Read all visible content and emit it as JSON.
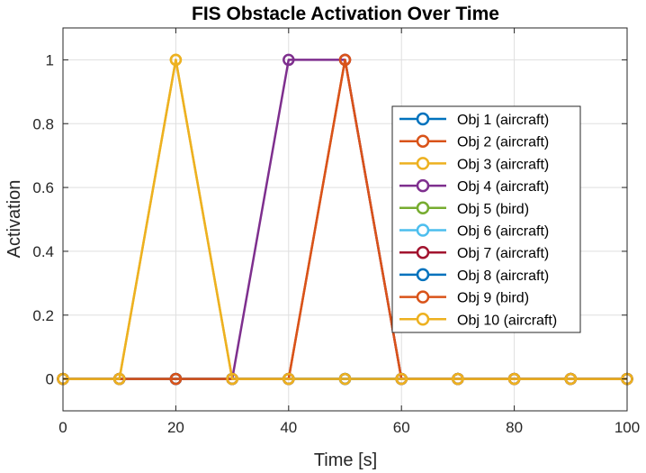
{
  "chart_data": {
    "type": "line",
    "title": "FIS Obstacle Activation Over Time",
    "xlabel": "Time [s]",
    "ylabel": "Activation",
    "xlim": [
      0,
      100
    ],
    "ylim": [
      -0.1,
      1.1
    ],
    "xticks": [
      0,
      20,
      40,
      60,
      80,
      100
    ],
    "yticks": [
      0,
      0.2,
      0.4,
      0.6,
      0.8,
      1
    ],
    "xtick_labels": [
      "0",
      "20",
      "40",
      "60",
      "80",
      "100"
    ],
    "ytick_labels": [
      "0",
      "0.2",
      "0.4",
      "0.6",
      "0.8",
      "1"
    ],
    "grid": true,
    "legend_position": "right",
    "x": [
      0,
      10,
      20,
      30,
      40,
      50,
      60,
      70,
      80,
      90,
      100
    ],
    "series": [
      {
        "name": "Obj 1 (aircraft)",
        "color": "#0072BD",
        "values": [
          0,
          0,
          0,
          0,
          0,
          0,
          0,
          0,
          0,
          0,
          0
        ]
      },
      {
        "name": "Obj 2 (aircraft)",
        "color": "#D95319",
        "values": [
          0,
          0,
          0,
          0,
          0,
          1,
          0,
          0,
          0,
          0,
          0
        ]
      },
      {
        "name": "Obj 3 (aircraft)",
        "color": "#EDB120",
        "values": [
          0,
          0,
          1,
          0,
          0,
          0,
          0,
          0,
          0,
          0,
          0
        ]
      },
      {
        "name": "Obj 4 (aircraft)",
        "color": "#7E2F8E",
        "values": [
          0,
          0,
          0,
          0,
          1,
          1,
          0,
          0,
          0,
          0,
          0
        ]
      },
      {
        "name": "Obj 5 (bird)",
        "color": "#77AC30",
        "values": [
          0,
          0,
          0,
          0,
          0,
          0,
          0,
          0,
          0,
          0,
          0
        ]
      },
      {
        "name": "Obj 6 (aircraft)",
        "color": "#4DBEEE",
        "values": [
          0,
          0,
          0,
          0,
          0,
          0,
          0,
          0,
          0,
          0,
          0
        ]
      },
      {
        "name": "Obj 7 (aircraft)",
        "color": "#A2142F",
        "values": [
          0,
          0,
          0,
          0,
          0,
          0,
          0,
          0,
          0,
          0,
          0
        ]
      },
      {
        "name": "Obj 8 (aircraft)",
        "color": "#0072BD",
        "values": [
          0,
          0,
          0,
          0,
          0,
          0,
          0,
          0,
          0,
          0,
          0
        ]
      },
      {
        "name": "Obj 9 (bird)",
        "color": "#D95319",
        "values": [
          0,
          0,
          0,
          0,
          0,
          1,
          0,
          0,
          0,
          0,
          0
        ]
      },
      {
        "name": "Obj 10 (aircraft)",
        "color": "#EDB120",
        "values": [
          0,
          0,
          1,
          0,
          0,
          0,
          0,
          0,
          0,
          0,
          0
        ]
      }
    ]
  }
}
